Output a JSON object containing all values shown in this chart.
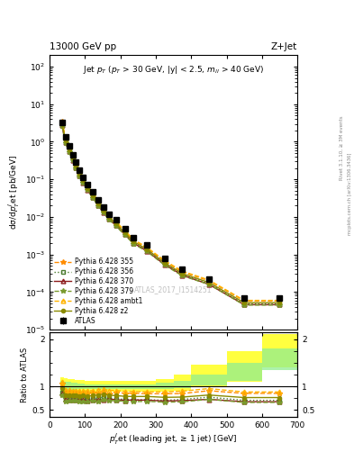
{
  "title_top": "13000 GeV pp",
  "title_right": "Z+Jet",
  "annotation": "Jet $p_T$ ($p_T$ > 30 GeV, |y| < 2.5, $m_{ll}$ > 40 GeV)",
  "watermark": "ATLAS_2017_I1514251",
  "right_label1": "Rivet 3.1.10, ≥ 3M events",
  "right_label2": "mcplots.cern.ch [arXiv:1306.3436]",
  "xlabel": "$p_T^{J}$et (leading jet, ≥ 1 jet) [GeV]",
  "ylabel_top": "dσ/d$p_T^{J}$et [pb/GeV]",
  "ylabel_bot": "Ratio to ATLAS",
  "atlas_x": [
    35,
    45,
    55,
    65,
    75,
    85,
    95,
    107.5,
    122.5,
    137.5,
    152.5,
    167.5,
    187.5,
    212.5,
    237.5,
    275,
    325,
    375,
    450,
    550,
    650
  ],
  "atlas_y": [
    3.2,
    1.35,
    0.78,
    0.46,
    0.285,
    0.178,
    0.115,
    0.074,
    0.046,
    0.028,
    0.018,
    0.012,
    0.0082,
    0.0048,
    0.0028,
    0.00175,
    0.00078,
    0.0004,
    0.00022,
    6.8e-05,
    6.8e-05
  ],
  "atlas_yerr_lo": [
    0.15,
    0.07,
    0.04,
    0.024,
    0.015,
    0.009,
    0.006,
    0.004,
    0.0025,
    0.0015,
    0.001,
    0.0007,
    0.0005,
    0.0003,
    0.00017,
    0.0001,
    5e-05,
    2.5e-05,
    1.5e-05,
    5e-06,
    5e-06
  ],
  "atlas_yerr_hi": [
    0.15,
    0.07,
    0.04,
    0.024,
    0.015,
    0.009,
    0.006,
    0.004,
    0.0025,
    0.0015,
    0.001,
    0.0007,
    0.0005,
    0.0003,
    0.00017,
    0.0001,
    5e-05,
    2.5e-05,
    1.5e-05,
    5e-06,
    5e-06
  ],
  "mc_pt": [
    35,
    45,
    55,
    65,
    75,
    85,
    95,
    107.5,
    122.5,
    137.5,
    152.5,
    167.5,
    187.5,
    212.5,
    237.5,
    275,
    325,
    375,
    450,
    550,
    650
  ],
  "py355_y": [
    3.4,
    1.2,
    0.68,
    0.4,
    0.245,
    0.152,
    0.098,
    0.063,
    0.04,
    0.024,
    0.016,
    0.01,
    0.0072,
    0.0041,
    0.0024,
    0.00148,
    0.00066,
    0.00034,
    0.0002,
    5.8e-05,
    5.8e-05
  ],
  "py356_y": [
    2.8,
    1.0,
    0.58,
    0.34,
    0.21,
    0.13,
    0.084,
    0.054,
    0.034,
    0.021,
    0.014,
    0.009,
    0.006,
    0.0035,
    0.002,
    0.00126,
    0.00055,
    0.00029,
    0.00017,
    4.8e-05,
    4.8e-05
  ],
  "py370_y": [
    2.7,
    0.97,
    0.56,
    0.33,
    0.205,
    0.127,
    0.082,
    0.052,
    0.033,
    0.02,
    0.013,
    0.0088,
    0.0059,
    0.0034,
    0.002,
    0.00124,
    0.00054,
    0.00028,
    0.00016,
    4.6e-05,
    4.6e-05
  ],
  "py379_y": [
    2.6,
    0.93,
    0.54,
    0.32,
    0.197,
    0.122,
    0.079,
    0.051,
    0.032,
    0.019,
    0.013,
    0.0085,
    0.0057,
    0.0033,
    0.0019,
    0.0012,
    0.00052,
    0.00027,
    0.00016,
    4.5e-05,
    4.5e-05
  ],
  "pyambt1_y": [
    3.5,
    1.25,
    0.72,
    0.42,
    0.26,
    0.16,
    0.104,
    0.067,
    0.042,
    0.026,
    0.017,
    0.011,
    0.0075,
    0.0043,
    0.0025,
    0.00155,
    0.00069,
    0.00036,
    0.00021,
    6e-05,
    6e-05
  ],
  "pyz2_y": [
    3.1,
    1.1,
    0.63,
    0.37,
    0.23,
    0.143,
    0.093,
    0.059,
    0.037,
    0.023,
    0.015,
    0.0098,
    0.0066,
    0.0038,
    0.0022,
    0.00138,
    0.0006,
    0.00031,
    0.00018,
    5.2e-05,
    5.2e-05
  ],
  "color_355": "#FF8C00",
  "color_356": "#4a7a2e",
  "color_370": "#8B1a1a",
  "color_379": "#7a9a2e",
  "color_ambt1": "#FFB300",
  "color_z2": "#8B8B00",
  "band_bins": [
    30,
    40,
    50,
    60,
    70,
    80,
    90,
    100,
    115,
    130,
    145,
    160,
    175,
    200,
    225,
    250,
    300,
    350,
    400,
    500,
    600,
    700
  ],
  "band_yellow_lo": [
    0.8,
    0.82,
    0.84,
    0.85,
    0.86,
    0.87,
    0.87,
    0.88,
    0.88,
    0.88,
    0.88,
    0.88,
    0.88,
    0.88,
    0.88,
    0.88,
    0.88,
    0.9,
    1.0,
    1.1,
    1.4
  ],
  "band_yellow_hi": [
    1.2,
    1.18,
    1.16,
    1.15,
    1.14,
    1.13,
    1.13,
    1.12,
    1.12,
    1.12,
    1.12,
    1.12,
    1.12,
    1.12,
    1.12,
    1.12,
    1.15,
    1.25,
    1.45,
    1.75,
    2.1
  ],
  "band_green_lo": [
    0.88,
    0.9,
    0.91,
    0.92,
    0.93,
    0.94,
    0.94,
    0.95,
    0.95,
    0.95,
    0.95,
    0.95,
    0.95,
    0.95,
    0.95,
    0.95,
    0.95,
    0.97,
    1.02,
    1.12,
    1.35
  ],
  "band_green_hi": [
    1.12,
    1.1,
    1.09,
    1.08,
    1.07,
    1.06,
    1.06,
    1.05,
    1.05,
    1.05,
    1.05,
    1.05,
    1.05,
    1.05,
    1.05,
    1.05,
    1.07,
    1.12,
    1.25,
    1.5,
    1.8
  ]
}
